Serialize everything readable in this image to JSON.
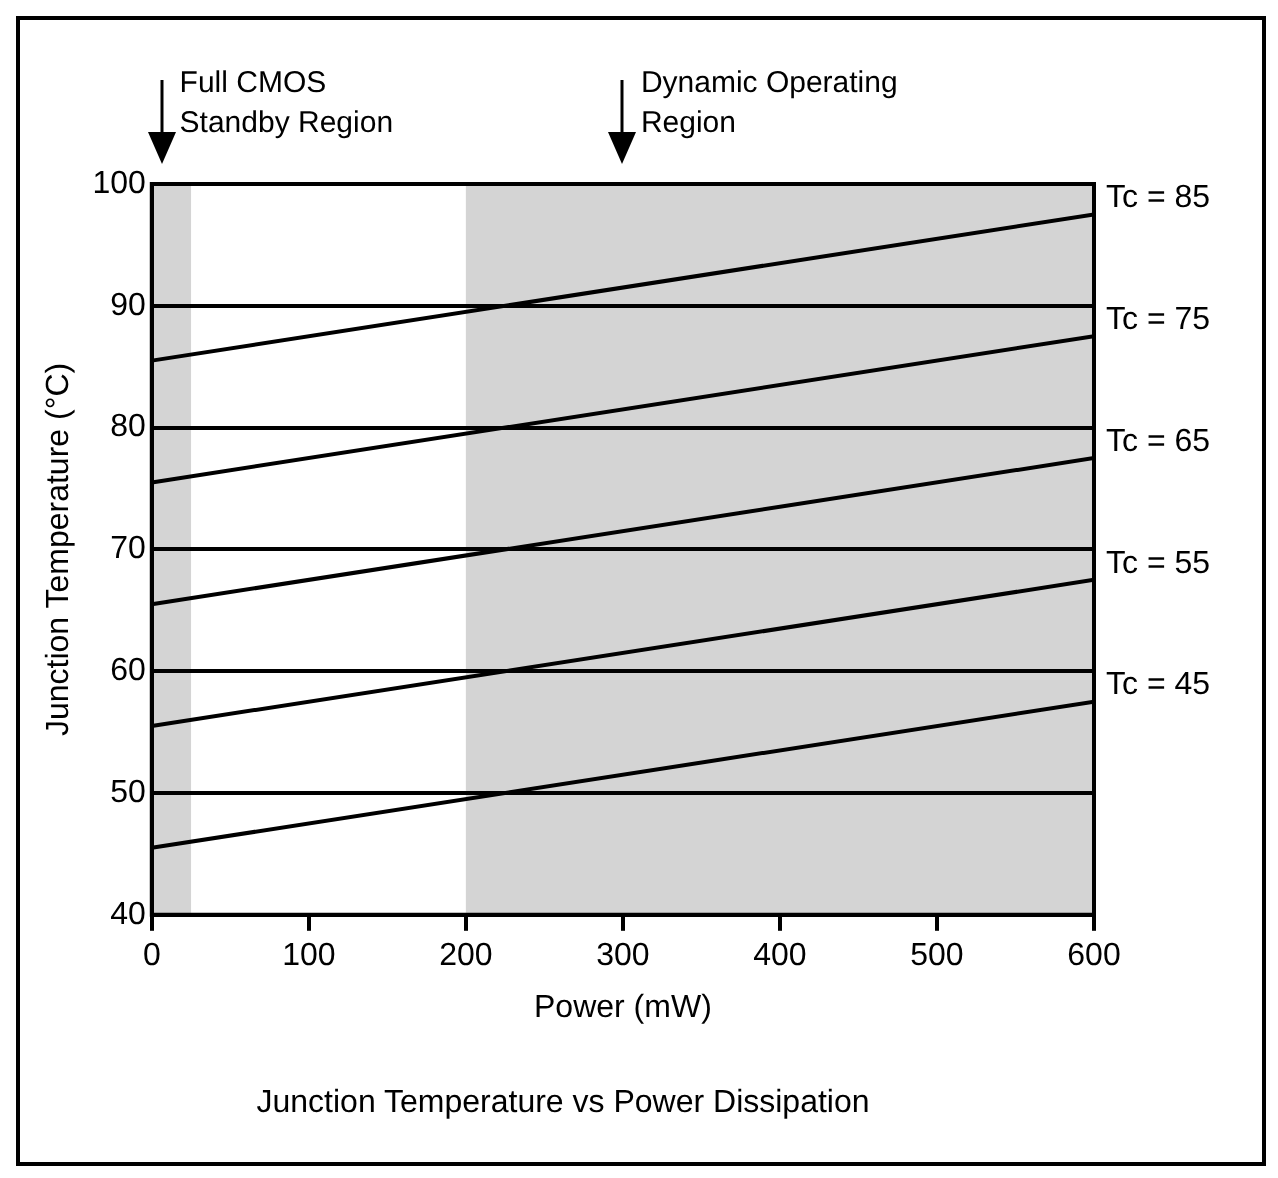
{
  "chart_data": {
    "type": "line",
    "title": "Junction Temperature vs Power Dissipation",
    "xlabel": "Power (mW)",
    "ylabel": "Junction Temperature (°C)",
    "x": [
      0,
      600
    ],
    "series": [
      {
        "name": "Tc = 45",
        "color": "#000000",
        "values": [
          45.5,
          57.5
        ]
      },
      {
        "name": "Tc = 55",
        "color": "#000000",
        "values": [
          55.5,
          67.5
        ]
      },
      {
        "name": "Tc = 65",
        "color": "#000000",
        "values": [
          65.5,
          77.5
        ]
      },
      {
        "name": "Tc = 75",
        "color": "#000000",
        "values": [
          75.5,
          87.5
        ]
      },
      {
        "name": "Tc = 85",
        "color": "#000000",
        "values": [
          85.5,
          97.5
        ]
      }
    ],
    "bands": [
      {
        "axis": "x",
        "from": 0,
        "to": 25,
        "color": "#d4d4d4"
      },
      {
        "axis": "x",
        "from": 200,
        "to": 600,
        "color": "#d4d4d4"
      }
    ],
    "annotations": [
      "Full CMOS Standby Region",
      "Dynamic Operating Region"
    ],
    "xlim": [
      0,
      600
    ],
    "xticks": [
      0,
      100,
      200,
      300,
      400,
      500,
      600
    ],
    "ylim": [
      40,
      100
    ],
    "yticks": [
      40,
      50,
      60,
      70,
      80,
      90,
      100
    ],
    "grid": "y",
    "legend": false,
    "marker": "none",
    "line_style": "solid"
  }
}
